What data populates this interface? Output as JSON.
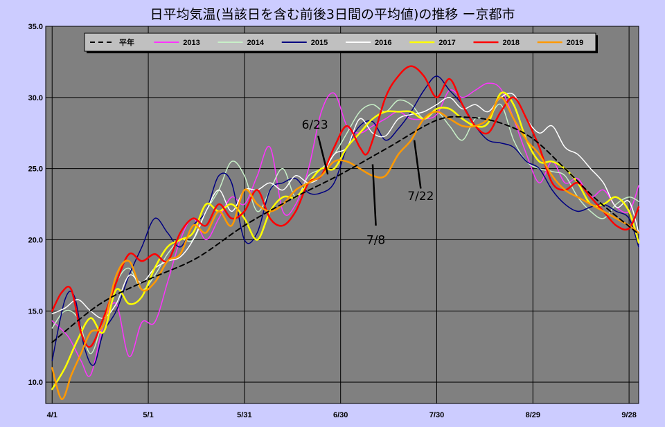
{
  "chart_data": {
    "type": "line",
    "title": "日平均気温(当該日を含む前後3日間の平均値)の推移 ー京都市",
    "xlabel": "",
    "ylabel": "",
    "ylim": [
      8.5,
      35.0
    ],
    "y_ticks": [
      "10.0",
      "15.0",
      "20.0",
      "25.0",
      "30.0",
      "35.0"
    ],
    "x_ticks": [
      {
        "label": "4/1",
        "day": 0
      },
      {
        "label": "5/1",
        "day": 30
      },
      {
        "label": "5/31",
        "day": 60
      },
      {
        "label": "6/30",
        "day": 90
      },
      {
        "label": "7/30",
        "day": 120
      },
      {
        "label": "8/29",
        "day": 150
      },
      {
        "label": "9/28",
        "day": 180
      }
    ],
    "x_range": [
      -2,
      183
    ],
    "grid": true,
    "legend_position": "top",
    "background_color": "#808080",
    "series": [
      {
        "name": "平年",
        "color": "#000000",
        "dashed": true,
        "width": 2,
        "x": [
          0,
          15,
          30,
          45,
          60,
          75,
          90,
          105,
          120,
          130,
          140,
          150,
          160,
          170,
          183
        ],
        "y": [
          12.8,
          15.5,
          17.2,
          18.7,
          21.0,
          22.9,
          24.6,
          26.5,
          28.4,
          28.6,
          28.2,
          27.1,
          25.0,
          22.8,
          20.4
        ]
      },
      {
        "name": "2013",
        "color": "#ff33ff",
        "dashed": false,
        "width": 1.5,
        "x": [
          0,
          5,
          9,
          12,
          16,
          20,
          24,
          28,
          32,
          36,
          40,
          44,
          48,
          52,
          56,
          60,
          64,
          68,
          72,
          76,
          80,
          84,
          88,
          92,
          96,
          100,
          104,
          108,
          112,
          116,
          120,
          124,
          128,
          132,
          136,
          140,
          144,
          148,
          152,
          156,
          160,
          164,
          168,
          172,
          176,
          180,
          183
        ],
        "y": [
          14.3,
          13.2,
          11.5,
          10.5,
          14.0,
          15.5,
          11.8,
          14.2,
          14.2,
          17.0,
          20.0,
          21.5,
          20.0,
          21.5,
          23.0,
          22.5,
          24.5,
          26.5,
          22.0,
          22.5,
          25.0,
          29.0,
          30.3,
          28.0,
          27.5,
          28.0,
          28.5,
          29.0,
          28.5,
          28.5,
          28.8,
          30.5,
          30.0,
          30.5,
          31.0,
          30.6,
          28.5,
          26.0,
          24.0,
          25.5,
          24.0,
          24.3,
          23.0,
          23.5,
          22.3,
          22.0,
          23.8
        ]
      },
      {
        "name": "2014",
        "color": "#c8f0c8",
        "dashed": false,
        "width": 1.5,
        "x": [
          0,
          4,
          8,
          12,
          16,
          20,
          24,
          28,
          32,
          36,
          40,
          44,
          48,
          52,
          56,
          60,
          64,
          68,
          72,
          76,
          80,
          84,
          88,
          92,
          96,
          100,
          104,
          108,
          112,
          116,
          120,
          124,
          128,
          132,
          136,
          140,
          144,
          148,
          152,
          156,
          160,
          164,
          168,
          172,
          176,
          180,
          183
        ],
        "y": [
          13.8,
          15.0,
          14.5,
          12.0,
          14.5,
          17.0,
          18.0,
          16.5,
          17.5,
          19.0,
          20.0,
          20.0,
          22.0,
          23.5,
          25.5,
          24.5,
          22.0,
          23.5,
          25.0,
          23.0,
          24.5,
          25.0,
          26.0,
          27.5,
          29.0,
          29.5,
          29.0,
          29.8,
          29.5,
          28.5,
          29.0,
          28.0,
          27.0,
          28.5,
          28.5,
          29.5,
          27.0,
          25.5,
          25.0,
          24.8,
          24.5,
          23.0,
          22.0,
          21.5,
          22.5,
          23.0,
          22.7
        ]
      },
      {
        "name": "2015",
        "color": "#000080",
        "dashed": false,
        "width": 1.5,
        "x": [
          0,
          4,
          7,
          10,
          13,
          16,
          20,
          24,
          28,
          32,
          36,
          40,
          44,
          48,
          52,
          56,
          60,
          64,
          68,
          72,
          76,
          80,
          84,
          88,
          92,
          96,
          100,
          104,
          108,
          112,
          116,
          120,
          124,
          128,
          132,
          136,
          140,
          144,
          148,
          152,
          156,
          160,
          164,
          168,
          172,
          176,
          180,
          183
        ],
        "y": [
          11.5,
          15.8,
          16.0,
          12.5,
          11.2,
          13.5,
          15.0,
          17.5,
          19.5,
          21.5,
          20.5,
          19.5,
          21.0,
          22.0,
          24.5,
          24.0,
          20.0,
          20.5,
          23.5,
          24.0,
          24.3,
          23.3,
          23.3,
          24.0,
          26.5,
          28.0,
          28.3,
          27.0,
          27.8,
          29.0,
          30.5,
          31.5,
          30.5,
          29.5,
          28.0,
          27.0,
          26.8,
          26.5,
          25.5,
          25.0,
          23.5,
          22.5,
          22.0,
          22.3,
          22.5,
          22.0,
          21.5,
          19.5
        ]
      },
      {
        "name": "2016",
        "color": "#ffffff",
        "dashed": false,
        "width": 1.5,
        "x": [
          0,
          4,
          8,
          12,
          16,
          20,
          24,
          28,
          32,
          36,
          40,
          44,
          48,
          52,
          56,
          60,
          64,
          68,
          72,
          76,
          80,
          84,
          88,
          92,
          96,
          100,
          104,
          108,
          112,
          116,
          120,
          124,
          128,
          132,
          136,
          140,
          144,
          148,
          152,
          156,
          160,
          164,
          168,
          172,
          176,
          180,
          183
        ],
        "y": [
          14.8,
          15.2,
          15.8,
          15.0,
          14.5,
          15.5,
          17.5,
          17.0,
          18.0,
          18.5,
          18.8,
          20.0,
          22.0,
          23.5,
          22.0,
          23.5,
          23.5,
          24.0,
          23.5,
          24.5,
          24.0,
          24.5,
          26.0,
          26.5,
          28.5,
          27.5,
          27.3,
          28.5,
          28.8,
          29.0,
          29.5,
          30.0,
          29.2,
          29.5,
          29.0,
          30.0,
          30.2,
          28.5,
          27.5,
          28.0,
          26.5,
          26.0,
          25.0,
          24.0,
          22.3,
          22.7,
          20.5
        ]
      },
      {
        "name": "2017",
        "color": "#ffff00",
        "dashed": false,
        "width": 2.5,
        "x": [
          0,
          4,
          8,
          12,
          16,
          20,
          24,
          28,
          32,
          36,
          40,
          44,
          48,
          52,
          56,
          60,
          64,
          68,
          72,
          76,
          80,
          84,
          88,
          92,
          96,
          100,
          104,
          108,
          112,
          116,
          120,
          124,
          128,
          132,
          136,
          140,
          144,
          148,
          152,
          156,
          160,
          164,
          168,
          172,
          176,
          180,
          183
        ],
        "y": [
          9.5,
          11.0,
          13.0,
          14.5,
          13.5,
          16.5,
          15.5,
          16.0,
          18.0,
          19.5,
          20.0,
          20.5,
          22.5,
          22.0,
          22.5,
          21.5,
          20.0,
          22.0,
          23.0,
          23.0,
          24.0,
          25.0,
          25.0,
          26.5,
          27.5,
          28.5,
          29.0,
          29.0,
          29.0,
          28.5,
          29.2,
          29.2,
          28.5,
          28.0,
          28.2,
          30.3,
          29.5,
          27.0,
          25.5,
          25.5,
          25.0,
          24.0,
          22.5,
          22.5,
          23.0,
          22.0,
          19.8
        ]
      },
      {
        "name": "2018",
        "color": "#ff0000",
        "dashed": false,
        "width": 2.5,
        "x": [
          0,
          3,
          6,
          9,
          12,
          16,
          20,
          24,
          28,
          32,
          36,
          40,
          44,
          48,
          52,
          56,
          60,
          64,
          68,
          72,
          76,
          80,
          84,
          88,
          92,
          96,
          98,
          100,
          104,
          108,
          112,
          116,
          120,
          124,
          128,
          132,
          136,
          140,
          144,
          148,
          152,
          156,
          160,
          164,
          168,
          172,
          176,
          180,
          183
        ],
        "y": [
          15.0,
          16.3,
          16.5,
          13.5,
          12.5,
          14.5,
          17.0,
          19.0,
          18.5,
          19.0,
          18.5,
          20.5,
          21.5,
          21.0,
          22.5,
          21.5,
          22.0,
          23.5,
          21.5,
          21.0,
          22.0,
          24.0,
          24.5,
          26.5,
          28.0,
          26.5,
          26.0,
          27.0,
          30.0,
          31.5,
          32.2,
          31.5,
          30.0,
          31.3,
          29.5,
          28.0,
          27.5,
          29.0,
          30.0,
          28.5,
          26.5,
          24.0,
          23.5,
          24.0,
          23.0,
          22.0,
          21.0,
          20.8,
          22.3
        ]
      },
      {
        "name": "2019",
        "color": "#ff9900",
        "dashed": false,
        "width": 2.5,
        "x": [
          0,
          3,
          6,
          9,
          12,
          16,
          20,
          24,
          28,
          32,
          36,
          40,
          44,
          48,
          52,
          56,
          60,
          64,
          68,
          72,
          76,
          80,
          84,
          88,
          92,
          96,
          100,
          104,
          108,
          112,
          116,
          120,
          124,
          128,
          132,
          136,
          140,
          144,
          148,
          152,
          156,
          160,
          164,
          168,
          172,
          176,
          180,
          183
        ],
        "y": [
          11.0,
          8.8,
          10.5,
          12.0,
          13.5,
          14.0,
          17.5,
          18.5,
          16.5,
          17.0,
          18.5,
          19.0,
          21.0,
          20.5,
          22.0,
          21.0,
          23.5,
          22.5,
          22.0,
          22.5,
          23.5,
          24.0,
          24.5,
          25.5,
          25.5,
          25.0,
          24.5,
          24.5,
          26.0,
          27.0,
          28.5,
          29.0,
          28.5,
          28.0,
          28.0,
          28.5,
          30.0,
          28.5,
          27.0,
          26.0,
          24.5,
          23.5,
          23.0,
          22.5,
          22.0,
          21.5,
          21.0,
          20.5
        ]
      }
    ],
    "annotations": [
      {
        "label": "6/23",
        "text_x": 82,
        "text_y": 27.8,
        "arrow_from": [
          83,
          27.3
        ],
        "arrow_to": [
          86,
          24.6
        ]
      },
      {
        "label": "7/8",
        "text_x": 101,
        "text_y": 19.7,
        "arrow_from": [
          101,
          21.0
        ],
        "arrow_to": [
          100,
          25.3
        ]
      },
      {
        "label": "7/22",
        "text_x": 115,
        "text_y": 22.8,
        "arrow_from": [
          115,
          23.6
        ],
        "arrow_to": [
          113,
          27.0
        ]
      }
    ]
  }
}
